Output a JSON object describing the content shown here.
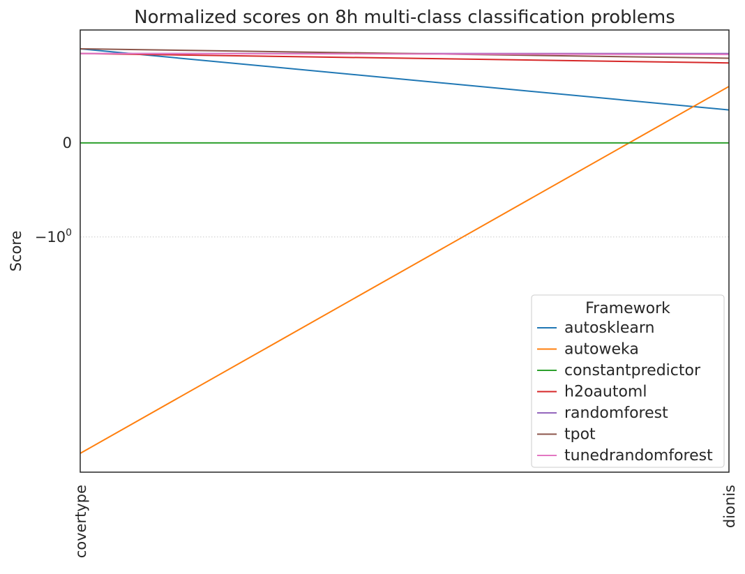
{
  "chart_data": {
    "type": "line",
    "title": "Normalized scores on 8h multi-class classification problems",
    "xlabel": "",
    "ylabel": "Score",
    "categories": [
      "covertype",
      "dionis"
    ],
    "yscale": "symlog",
    "ylim": [
      -3.5,
      1.2
    ],
    "yticks": [
      {
        "value": 0,
        "label": "0"
      },
      {
        "value": -1,
        "label": "−10",
        "sup": "0"
      }
    ],
    "grid": "horizontal dotted at -1",
    "legend": {
      "title": "Framework",
      "position": "lower-right"
    },
    "series": [
      {
        "name": "autosklearn",
        "color": "#1f77b4",
        "values": [
          1.0,
          0.35
        ]
      },
      {
        "name": "autoweka",
        "color": "#ff7f0e",
        "values": [
          -3.3,
          0.6
        ]
      },
      {
        "name": "constantpredictor",
        "color": "#2ca02c",
        "values": [
          0.0,
          0.0
        ]
      },
      {
        "name": "h2oautoml",
        "color": "#d62728",
        "values": [
          0.95,
          0.85
        ]
      },
      {
        "name": "randomforest",
        "color": "#9467bd",
        "values": [
          0.95,
          0.95
        ]
      },
      {
        "name": "tpot",
        "color": "#8c564b",
        "values": [
          1.0,
          0.9
        ]
      },
      {
        "name": "tunedrandomforest",
        "color": "#e377c2",
        "values": [
          0.95,
          0.94
        ]
      }
    ]
  }
}
